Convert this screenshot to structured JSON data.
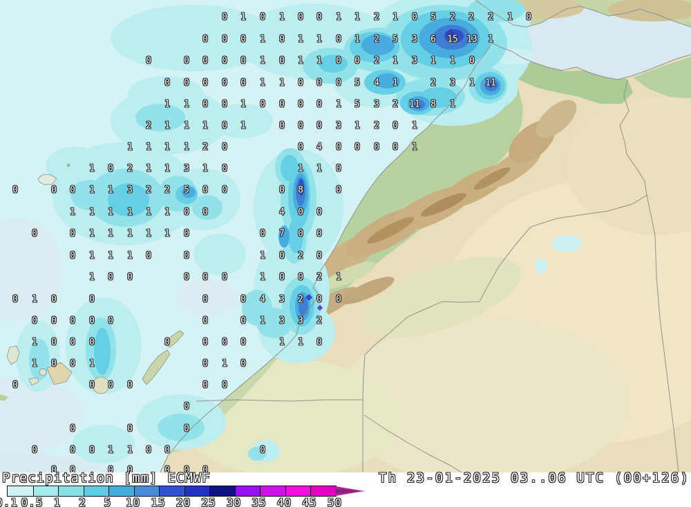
{
  "legend": {
    "title": "Precipitation",
    "unit": "[mm]",
    "model": "ECMWF",
    "datetime": "Th 23-01-2025 03..06 UTC (00+126)",
    "ticks": [
      "0.1",
      "0.5",
      "1",
      "2",
      "5",
      "10",
      "15",
      "20",
      "25",
      "30",
      "35",
      "40",
      "45",
      "50"
    ],
    "segment_colors": [
      "#cff3f3",
      "#a6ebee",
      "#88e0e9",
      "#60cbe3",
      "#45acdc",
      "#468cd8",
      "#2f52cd",
      "#2133bf",
      "#0d1480",
      "#9712ef",
      "#cb13e7",
      "#ef11da",
      "#e203c3"
    ],
    "arrow_color": "#aa2593",
    "arrow_color_dark": "#8e1f7e"
  },
  "map": {
    "precip_level_colors": [
      "#d5f2f4",
      "#bceef1",
      "#92e2ea",
      "#66cee5",
      "#49abde",
      "#3f7ed3",
      "#2d52c9"
    ],
    "sea_color": "#d9ecf2",
    "land_color": "#e9debb",
    "grid": [
      [
        25,
        [
          [
            325,
            "0"
          ],
          [
            352,
            "1"
          ],
          [
            380,
            "0"
          ],
          [
            408,
            "1"
          ],
          [
            435,
            "0"
          ],
          [
            462,
            "0"
          ],
          [
            490,
            "1"
          ],
          [
            517,
            "1"
          ],
          [
            545,
            "2"
          ],
          [
            572,
            "1"
          ],
          [
            600,
            "0"
          ],
          [
            627,
            "5"
          ],
          [
            655,
            "2"
          ],
          [
            682,
            "2"
          ],
          [
            710,
            "2"
          ],
          [
            738,
            "1"
          ],
          [
            765,
            "0"
          ]
        ]
      ],
      [
        57,
        [
          [
            297,
            "0"
          ],
          [
            325,
            "0"
          ],
          [
            352,
            "0"
          ],
          [
            380,
            "1"
          ],
          [
            408,
            "0"
          ],
          [
            435,
            "1"
          ],
          [
            462,
            "1"
          ],
          [
            490,
            "0"
          ],
          [
            517,
            "1"
          ],
          [
            545,
            "2"
          ],
          [
            572,
            "5"
          ],
          [
            600,
            "3"
          ],
          [
            627,
            "6"
          ],
          [
            655,
            "15"
          ],
          [
            683,
            "13"
          ],
          [
            710,
            "1"
          ]
        ]
      ],
      [
        88,
        [
          [
            215,
            "0"
          ],
          [
            270,
            "0"
          ],
          [
            297,
            "0"
          ],
          [
            325,
            "0"
          ],
          [
            352,
            "0"
          ],
          [
            380,
            "1"
          ],
          [
            408,
            "0"
          ],
          [
            435,
            "1"
          ],
          [
            462,
            "1"
          ],
          [
            490,
            "0"
          ],
          [
            517,
            "0"
          ],
          [
            545,
            "2"
          ],
          [
            572,
            "1"
          ],
          [
            600,
            "3"
          ],
          [
            627,
            "1"
          ],
          [
            655,
            "1"
          ],
          [
            683,
            "0"
          ]
        ]
      ],
      [
        120,
        [
          [
            242,
            "0"
          ],
          [
            270,
            "0"
          ],
          [
            297,
            "0"
          ],
          [
            325,
            "0"
          ],
          [
            352,
            "0"
          ],
          [
            380,
            "1"
          ],
          [
            408,
            "1"
          ],
          [
            435,
            "0"
          ],
          [
            462,
            "0"
          ],
          [
            490,
            "0"
          ],
          [
            517,
            "5"
          ],
          [
            545,
            "4"
          ],
          [
            572,
            "1"
          ],
          [
            627,
            "2"
          ],
          [
            655,
            "3"
          ],
          [
            683,
            "1"
          ],
          [
            710,
            "11"
          ]
        ]
      ],
      [
        151,
        [
          [
            242,
            "1"
          ],
          [
            270,
            "1"
          ],
          [
            297,
            "0"
          ],
          [
            325,
            "0"
          ],
          [
            352,
            "1"
          ],
          [
            380,
            "0"
          ],
          [
            408,
            "0"
          ],
          [
            435,
            "0"
          ],
          [
            462,
            "0"
          ],
          [
            490,
            "1"
          ],
          [
            517,
            "5"
          ],
          [
            545,
            "3"
          ],
          [
            572,
            "2"
          ],
          [
            600,
            "11"
          ],
          [
            627,
            "8"
          ],
          [
            655,
            "1"
          ]
        ]
      ],
      [
        182,
        [
          [
            215,
            "2"
          ],
          [
            242,
            "1"
          ],
          [
            270,
            "1"
          ],
          [
            297,
            "1"
          ],
          [
            325,
            "0"
          ],
          [
            352,
            "1"
          ],
          [
            408,
            "0"
          ],
          [
            435,
            "0"
          ],
          [
            462,
            "0"
          ],
          [
            490,
            "3"
          ],
          [
            517,
            "1"
          ],
          [
            545,
            "2"
          ],
          [
            572,
            "0"
          ],
          [
            600,
            "1"
          ]
        ]
      ],
      [
        213,
        [
          [
            188,
            "1"
          ],
          [
            215,
            "1"
          ],
          [
            242,
            "1"
          ],
          [
            270,
            "1"
          ],
          [
            297,
            "2"
          ],
          [
            325,
            "0"
          ],
          [
            435,
            "0"
          ],
          [
            462,
            "4"
          ],
          [
            490,
            "0"
          ],
          [
            517,
            "0"
          ],
          [
            545,
            "0"
          ],
          [
            572,
            "0"
          ],
          [
            600,
            "1"
          ]
        ]
      ],
      [
        244,
        [
          [
            133,
            "1"
          ],
          [
            160,
            "0"
          ],
          [
            188,
            "2"
          ],
          [
            215,
            "1"
          ],
          [
            242,
            "1"
          ],
          [
            270,
            "3"
          ],
          [
            297,
            "1"
          ],
          [
            325,
            "0"
          ],
          [
            435,
            "1"
          ],
          [
            462,
            "1"
          ],
          [
            490,
            "0"
          ]
        ]
      ],
      [
        275,
        [
          [
            22,
            "0"
          ],
          [
            78,
            "0"
          ],
          [
            105,
            "0"
          ],
          [
            133,
            "1"
          ],
          [
            160,
            "1"
          ],
          [
            188,
            "3"
          ],
          [
            215,
            "2"
          ],
          [
            242,
            "2"
          ],
          [
            270,
            "5"
          ],
          [
            297,
            "0"
          ],
          [
            325,
            "0"
          ],
          [
            408,
            "0"
          ],
          [
            435,
            "8"
          ],
          [
            490,
            "0"
          ]
        ]
      ],
      [
        307,
        [
          [
            105,
            "1"
          ],
          [
            133,
            "1"
          ],
          [
            160,
            "1"
          ],
          [
            188,
            "1"
          ],
          [
            215,
            "1"
          ],
          [
            242,
            "1"
          ],
          [
            270,
            "0"
          ],
          [
            297,
            "0"
          ],
          [
            408,
            "4"
          ],
          [
            435,
            "0"
          ],
          [
            462,
            "0"
          ]
        ]
      ],
      [
        338,
        [
          [
            50,
            "0"
          ],
          [
            105,
            "0"
          ],
          [
            133,
            "1"
          ],
          [
            160,
            "1"
          ],
          [
            188,
            "1"
          ],
          [
            215,
            "1"
          ],
          [
            242,
            "1"
          ],
          [
            270,
            "0"
          ],
          [
            380,
            "0"
          ],
          [
            408,
            "7"
          ],
          [
            435,
            "0"
          ],
          [
            462,
            "0"
          ]
        ]
      ],
      [
        370,
        [
          [
            105,
            "0"
          ],
          [
            133,
            "1"
          ],
          [
            160,
            "1"
          ],
          [
            188,
            "1"
          ],
          [
            215,
            "0"
          ],
          [
            270,
            "0"
          ],
          [
            380,
            "1"
          ],
          [
            408,
            "0"
          ],
          [
            435,
            "2"
          ],
          [
            462,
            "0"
          ]
        ]
      ],
      [
        401,
        [
          [
            133,
            "1"
          ],
          [
            160,
            "0"
          ],
          [
            188,
            "0"
          ],
          [
            270,
            "0"
          ],
          [
            297,
            "0"
          ],
          [
            325,
            "0"
          ],
          [
            380,
            "1"
          ],
          [
            408,
            "0"
          ],
          [
            435,
            "0"
          ],
          [
            462,
            "2"
          ],
          [
            490,
            "1"
          ]
        ]
      ],
      [
        433,
        [
          [
            22,
            "0"
          ],
          [
            50,
            "1"
          ],
          [
            78,
            "0"
          ],
          [
            133,
            "0"
          ],
          [
            297,
            "0"
          ],
          [
            352,
            "0"
          ],
          [
            380,
            "4"
          ],
          [
            408,
            "3"
          ],
          [
            435,
            "2"
          ],
          [
            462,
            "0"
          ],
          [
            490,
            "0"
          ]
        ]
      ],
      [
        464,
        [
          [
            50,
            "0"
          ],
          [
            78,
            "0"
          ],
          [
            105,
            "0"
          ],
          [
            133,
            "0"
          ],
          [
            160,
            "0"
          ],
          [
            297,
            "0"
          ],
          [
            352,
            "0"
          ],
          [
            380,
            "1"
          ],
          [
            408,
            "3"
          ],
          [
            435,
            "3"
          ],
          [
            462,
            "2"
          ]
        ]
      ],
      [
        495,
        [
          [
            50,
            "1"
          ],
          [
            78,
            "0"
          ],
          [
            105,
            "0"
          ],
          [
            133,
            "0"
          ],
          [
            242,
            "0"
          ],
          [
            297,
            "0"
          ],
          [
            325,
            "0"
          ],
          [
            352,
            "0"
          ],
          [
            408,
            "1"
          ],
          [
            435,
            "1"
          ],
          [
            462,
            "0"
          ]
        ]
      ],
      [
        526,
        [
          [
            50,
            "1"
          ],
          [
            78,
            "0"
          ],
          [
            105,
            "0"
          ],
          [
            133,
            "1"
          ],
          [
            297,
            "0"
          ],
          [
            325,
            "1"
          ],
          [
            352,
            "0"
          ]
        ]
      ],
      [
        557,
        [
          [
            22,
            "0"
          ],
          [
            133,
            "0"
          ],
          [
            160,
            "0"
          ],
          [
            188,
            "0"
          ],
          [
            297,
            "0"
          ],
          [
            325,
            "0"
          ]
        ]
      ],
      [
        588,
        [
          [
            270,
            "0"
          ]
        ]
      ],
      [
        620,
        [
          [
            105,
            "0"
          ],
          [
            188,
            "0"
          ],
          [
            270,
            "0"
          ]
        ]
      ],
      [
        651,
        [
          [
            50,
            "0"
          ],
          [
            105,
            "0"
          ],
          [
            133,
            "0"
          ],
          [
            160,
            "1"
          ],
          [
            188,
            "1"
          ],
          [
            215,
            "0"
          ],
          [
            242,
            "0"
          ],
          [
            380,
            "0"
          ]
        ]
      ],
      [
        680,
        [
          [
            78,
            "0"
          ],
          [
            105,
            "0"
          ],
          [
            160,
            "0"
          ],
          [
            188,
            "0"
          ],
          [
            242,
            "0"
          ],
          [
            270,
            "0"
          ],
          [
            297,
            "0"
          ]
        ]
      ]
    ]
  }
}
